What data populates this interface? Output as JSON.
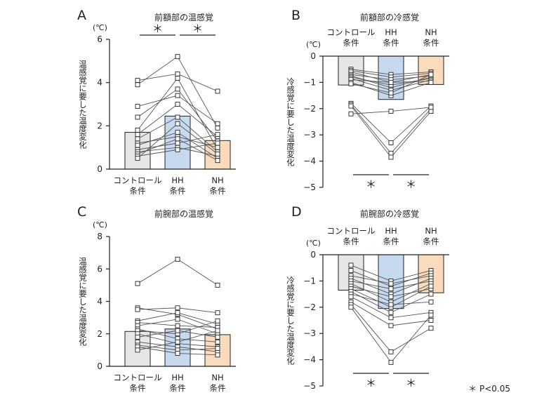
{
  "colors": {
    "control": "#e6e6e6",
    "hh": "#c6d9ef",
    "nh": "#f8dcbd",
    "bar_edge": "#222222",
    "line": "#555555",
    "point_fill": "#ffffff",
    "point_edge": "#222222"
  },
  "footnote": "＊ P<0.05",
  "chart_data": [
    {
      "panel": "A",
      "type": "bar",
      "title": "前額部の温感覚",
      "ylabel": "温感覚に要した温度変化",
      "unit": "(℃)",
      "ylim": [
        0,
        6
      ],
      "yticks": [
        0,
        2,
        4,
        6
      ],
      "categories": [
        {
          "line1": "コントロール",
          "line2": "条件"
        },
        {
          "line1": "HH",
          "line2": "条件"
        },
        {
          "line1": "NH",
          "line2": "条件"
        }
      ],
      "means": [
        1.7,
        2.45,
        1.32
      ],
      "significance": [
        {
          "from": 0,
          "to": 1,
          "label": "＊"
        },
        {
          "from": 1,
          "to": 2,
          "label": "＊"
        }
      ],
      "subjects": [
        [
          4.1,
          4.4,
          3.6
        ],
        [
          3.9,
          5.2,
          1.9
        ],
        [
          2.9,
          3.4,
          2.1
        ],
        [
          2.4,
          3.7,
          1.3
        ],
        [
          1.8,
          4.2,
          0.9
        ],
        [
          1.6,
          3.0,
          1.5
        ],
        [
          1.4,
          2.4,
          0.8
        ],
        [
          1.2,
          1.5,
          1.0
        ],
        [
          1.1,
          1.7,
          0.5
        ],
        [
          0.9,
          1.2,
          1.6
        ],
        [
          0.8,
          1.0,
          0.6
        ],
        [
          0.7,
          1.4,
          0.4
        ],
        [
          0.6,
          0.9,
          1.2
        ],
        [
          0.5,
          2.1,
          0.7
        ]
      ]
    },
    {
      "panel": "B",
      "type": "bar",
      "title": "前額部の冷感覚",
      "ylabel": "冷感覚に要した温度変化",
      "unit": "(℃)",
      "ylim": [
        -5,
        0
      ],
      "yticks": [
        0,
        -1,
        -2,
        -3,
        -4,
        -5
      ],
      "categories": [
        {
          "line1": "コントロール",
          "line2": "条件"
        },
        {
          "line1": "HH",
          "line2": "条件"
        },
        {
          "line1": "NH",
          "line2": "条件"
        }
      ],
      "means": [
        -1.1,
        -1.65,
        -1.08
      ],
      "significance": [
        {
          "from": 0,
          "to": 1,
          "label": "＊"
        },
        {
          "from": 1,
          "to": 2,
          "label": "＊"
        }
      ],
      "subjects": [
        [
          -0.5,
          -0.7,
          -0.6
        ],
        [
          -0.55,
          -0.8,
          -0.65
        ],
        [
          -0.6,
          -1.0,
          -0.7
        ],
        [
          -0.7,
          -0.9,
          -0.75
        ],
        [
          -0.75,
          -1.2,
          -0.8
        ],
        [
          -0.8,
          -1.1,
          -0.85
        ],
        [
          -0.85,
          -1.3,
          -0.9
        ],
        [
          -0.9,
          -1.0,
          -0.95
        ],
        [
          -1.0,
          -1.5,
          -1.0
        ],
        [
          -1.05,
          -1.4,
          -0.7
        ],
        [
          -1.8,
          -3.3,
          -1.9
        ],
        [
          -1.85,
          -3.7,
          -2.0
        ],
        [
          -1.9,
          -3.85,
          -2.1
        ],
        [
          -2.2,
          -2.1,
          -1.95
        ]
      ]
    },
    {
      "panel": "C",
      "type": "bar",
      "title": "前腕部の温感覚",
      "ylabel": "温感覚に要した温度変化",
      "unit": "(℃)",
      "ylim": [
        0,
        8
      ],
      "yticks": [
        0,
        2,
        4,
        6,
        8
      ],
      "categories": [
        {
          "line1": "コントロール",
          "line2": "条件"
        },
        {
          "line1": "HH",
          "line2": "条件"
        },
        {
          "line1": "NH",
          "line2": "条件"
        }
      ],
      "means": [
        2.15,
        2.3,
        1.95
      ],
      "significance": [],
      "subjects": [
        [
          5.1,
          6.6,
          5.0
        ],
        [
          3.6,
          3.2,
          2.3
        ],
        [
          3.5,
          3.6,
          3.3
        ],
        [
          2.8,
          3.3,
          2.6
        ],
        [
          2.7,
          2.5,
          2.4
        ],
        [
          2.5,
          2.9,
          2.0
        ],
        [
          2.3,
          1.7,
          1.5
        ],
        [
          2.2,
          2.0,
          2.8
        ],
        [
          2.0,
          1.4,
          1.2
        ],
        [
          1.8,
          2.2,
          1.8
        ],
        [
          1.5,
          1.2,
          0.9
        ],
        [
          1.3,
          1.0,
          1.1
        ],
        [
          1.2,
          0.8,
          0.7
        ],
        [
          1.0,
          1.5,
          2.2
        ]
      ]
    },
    {
      "panel": "D",
      "type": "bar",
      "title": "前腕部の冷感覚",
      "ylabel": "冷感覚に要した温度変化",
      "unit": "(℃)",
      "ylim": [
        -5,
        0
      ],
      "yticks": [
        0,
        -1,
        -2,
        -3,
        -4,
        -5
      ],
      "categories": [
        {
          "line1": "コントロール",
          "line2": "条件"
        },
        {
          "line1": "HH",
          "line2": "条件"
        },
        {
          "line1": "NH",
          "line2": "条件"
        }
      ],
      "means": [
        -1.35,
        -2.05,
        -1.45
      ],
      "significance": [
        {
          "from": 0,
          "to": 1,
          "label": "＊"
        },
        {
          "from": 1,
          "to": 2,
          "label": "＊"
        }
      ],
      "subjects": [
        [
          -0.4,
          -1.0,
          -0.6
        ],
        [
          -0.6,
          -1.2,
          -0.7
        ],
        [
          -0.8,
          -1.1,
          -0.8
        ],
        [
          -0.9,
          -1.5,
          -0.9
        ],
        [
          -1.0,
          -1.3,
          -1.0
        ],
        [
          -1.1,
          -1.8,
          -1.1
        ],
        [
          -1.2,
          -1.6,
          -1.3
        ],
        [
          -1.3,
          -2.0,
          -1.2
        ],
        [
          -1.4,
          -2.2,
          -1.5
        ],
        [
          -1.5,
          -1.9,
          -1.8
        ],
        [
          -1.6,
          -2.4,
          -2.2
        ],
        [
          -1.8,
          -2.7,
          -2.5
        ],
        [
          -1.9,
          -3.7,
          -2.8
        ],
        [
          -2.0,
          -4.1,
          -2.3
        ]
      ]
    }
  ]
}
